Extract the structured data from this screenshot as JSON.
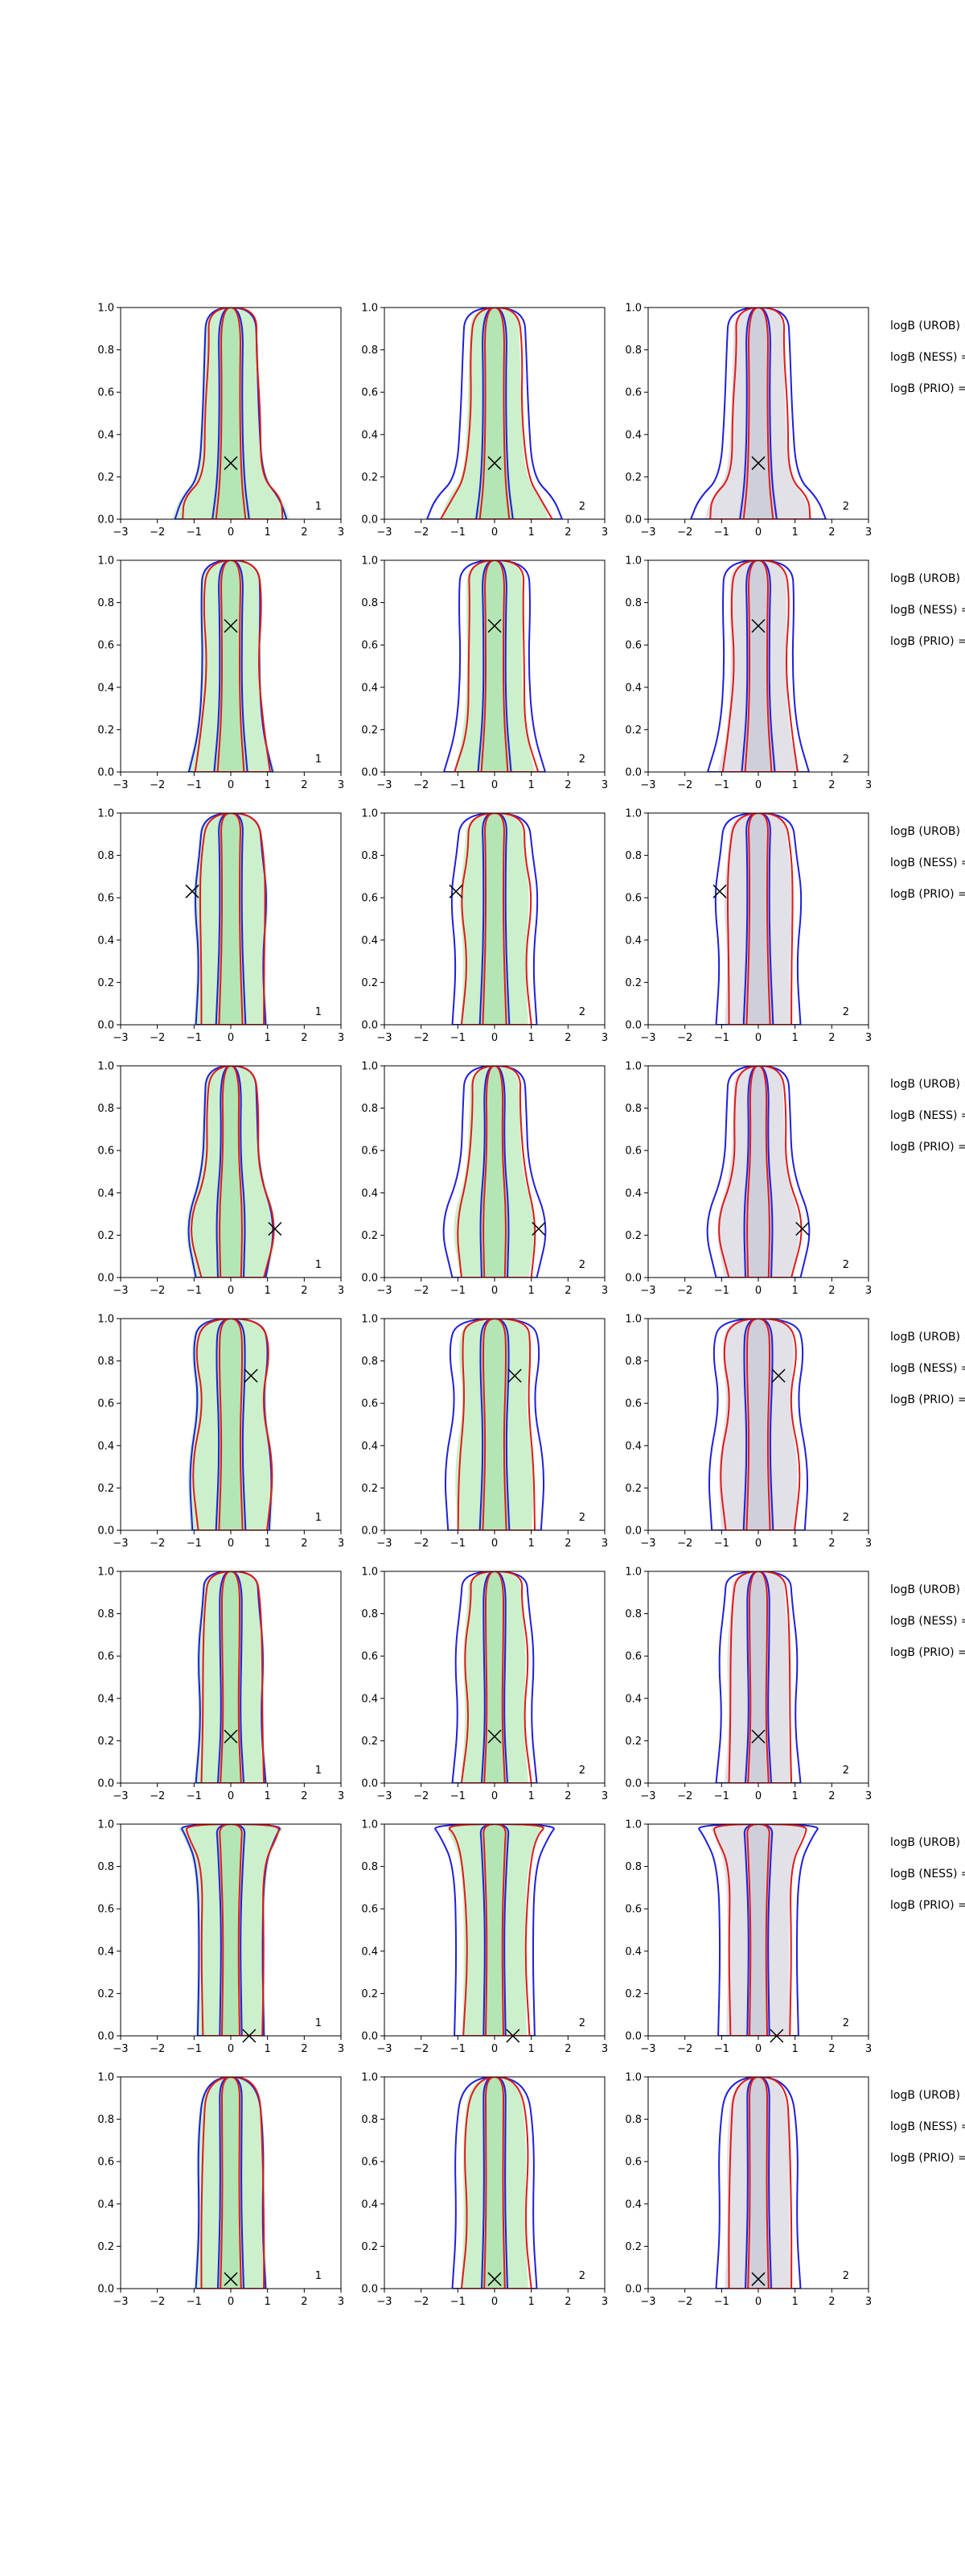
{
  "figure": {
    "columns": 3,
    "rows": 8,
    "side_labels": [
      "logB (UROB) =",
      "logB (NESS) =",
      "logB (PRIO) ="
    ]
  },
  "chart_data": {
    "type": "contour-grid",
    "xlim": [
      -3,
      3
    ],
    "ylim": [
      0,
      1
    ],
    "x_ticks": [
      "−3",
      "−2",
      "−1",
      "0",
      "1",
      "2",
      "3"
    ],
    "y_ticks": [
      "0.0",
      "0.2",
      "0.4",
      "0.6",
      "0.8",
      "1.0"
    ],
    "column_fill_colors": [
      "#c7eec7",
      "#c7eec7",
      "#dedee4"
    ],
    "contour_colors": {
      "blue": "#1f1fdd",
      "red": "#e11919"
    },
    "panel_tags": [
      "1",
      "2",
      "2"
    ],
    "rows": [
      {
        "marker": {
          "x": 0.0,
          "y": 0.265
        }
      },
      {
        "marker": {
          "x": 0.0,
          "y": 0.69
        }
      },
      {
        "marker": {
          "x": -1.05,
          "y": 0.63
        }
      },
      {
        "marker": {
          "x": 1.2,
          "y": 0.23
        }
      },
      {
        "marker": {
          "x": 0.55,
          "y": 0.73
        }
      },
      {
        "marker": {
          "x": 0.0,
          "y": 0.22
        }
      },
      {
        "marker": {
          "x": 0.5,
          "y": 0.0
        }
      },
      {
        "marker": {
          "x": 0.0,
          "y": 0.045
        }
      }
    ]
  }
}
